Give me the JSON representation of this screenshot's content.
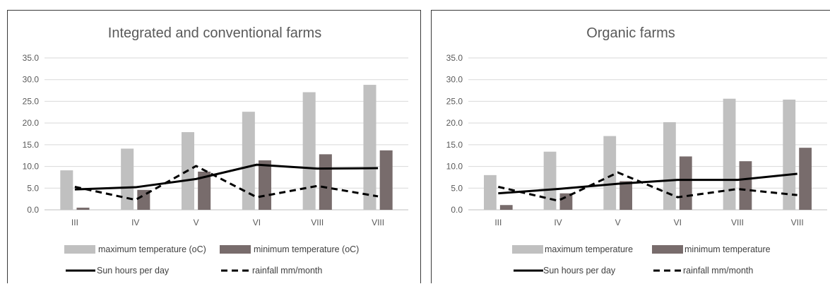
{
  "colors": {
    "max": "#c0c0c0",
    "min": "#786c6c",
    "sun": "#000000",
    "rain": "#000000",
    "grid": "#d9d9d9",
    "text": "#595959"
  },
  "chart_data": [
    {
      "type": "bar",
      "title": "Integrated and conventional farms",
      "categories": [
        "III",
        "IV",
        "V",
        "VI",
        "VIII",
        "VIII"
      ],
      "ylim": [
        0,
        35
      ],
      "yticks": [
        "0.0",
        "5.0",
        "10.0",
        "15.0",
        "20.0",
        "25.0",
        "30.0",
        "35.0"
      ],
      "grid": true,
      "legend_position": "bottom",
      "series": [
        {
          "name": "maximum temperature (oC)",
          "kind": "bar",
          "values": [
            9.1,
            14.1,
            17.9,
            22.6,
            27.1,
            28.8
          ]
        },
        {
          "name": "minimum temperature (oC)",
          "kind": "bar",
          "values": [
            0.5,
            4.6,
            8.8,
            11.4,
            12.8,
            13.7
          ]
        },
        {
          "name": "Sun hours per day",
          "kind": "line",
          "values": [
            4.7,
            5.2,
            7.1,
            10.4,
            9.5,
            9.6
          ]
        },
        {
          "name": "rainfall mm/month",
          "kind": "dashed-line",
          "values": [
            5.3,
            2.3,
            10.1,
            2.9,
            5.5,
            3.1
          ]
        }
      ]
    },
    {
      "type": "bar",
      "title": "Organic farms",
      "categories": [
        "III",
        "IV",
        "V",
        "VI",
        "VIII",
        "VIII"
      ],
      "ylim": [
        0,
        35
      ],
      "yticks": [
        "0.0",
        "5.0",
        "10.0",
        "15.0",
        "20.0",
        "25.0",
        "30.0",
        "35.0"
      ],
      "grid": true,
      "legend_position": "bottom",
      "series": [
        {
          "name": "maximum temperature",
          "kind": "bar",
          "values": [
            8.0,
            13.4,
            17.0,
            20.2,
            25.6,
            25.4
          ]
        },
        {
          "name": "minimum temperature",
          "kind": "bar",
          "values": [
            1.1,
            3.8,
            6.6,
            12.3,
            11.2,
            14.3
          ]
        },
        {
          "name": "Sun hours per day",
          "kind": "line",
          "values": [
            3.8,
            4.8,
            6.0,
            6.9,
            6.9,
            8.3
          ]
        },
        {
          "name": "rainfall mm/month",
          "kind": "dashed-line",
          "values": [
            5.3,
            2.1,
            8.6,
            2.9,
            4.8,
            3.4
          ]
        }
      ]
    }
  ]
}
